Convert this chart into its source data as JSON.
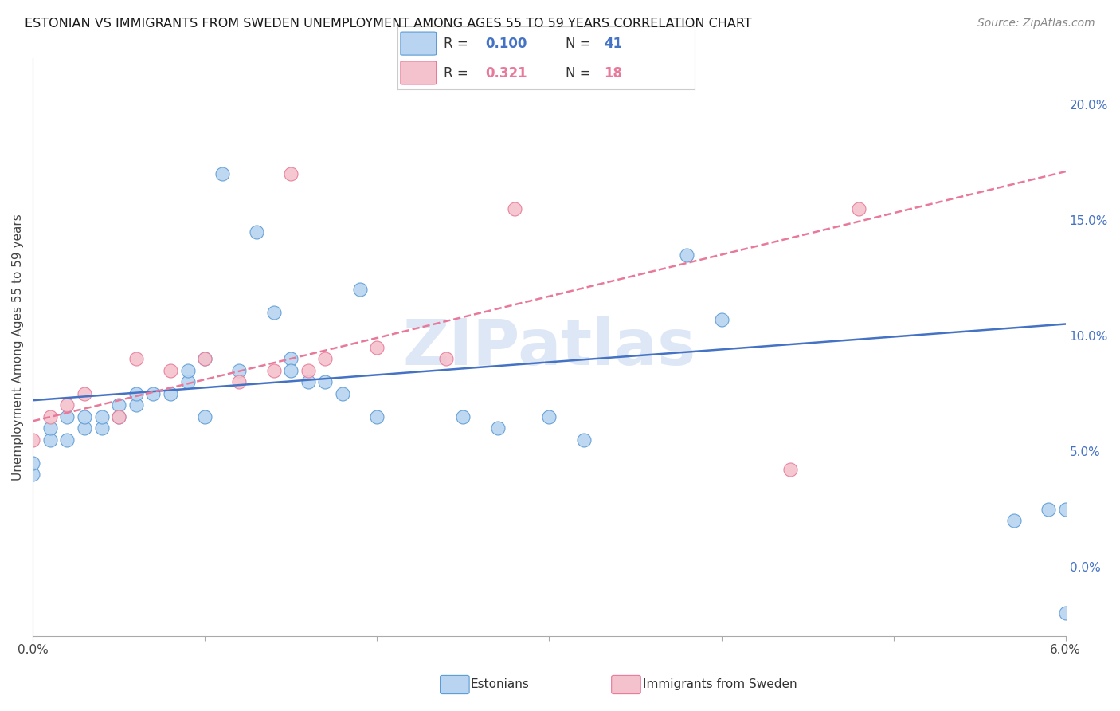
{
  "title": "ESTONIAN VS IMMIGRANTS FROM SWEDEN UNEMPLOYMENT AMONG AGES 55 TO 59 YEARS CORRELATION CHART",
  "source": "Source: ZipAtlas.com",
  "ylabel": "Unemployment Among Ages 55 to 59 years",
  "xlim": [
    0.0,
    0.06
  ],
  "ylim": [
    -0.03,
    0.22
  ],
  "xticks": [
    0.0,
    0.01,
    0.02,
    0.03,
    0.04,
    0.05,
    0.06
  ],
  "xtick_labels": [
    "0.0%",
    "",
    "",
    "",
    "",
    "",
    "6.0%"
  ],
  "yticks_right": [
    0.0,
    0.05,
    0.1,
    0.15,
    0.2
  ],
  "ytick_labels_right": [
    "0.0%",
    "5.0%",
    "10.0%",
    "15.0%",
    "20.0%"
  ],
  "estonians": {
    "color": "#b8d4f0",
    "edge_color": "#5b9bd5",
    "trend_color": "#4472c4",
    "x": [
      0.0,
      0.0,
      0.001,
      0.001,
      0.002,
      0.002,
      0.003,
      0.003,
      0.004,
      0.004,
      0.005,
      0.005,
      0.006,
      0.006,
      0.007,
      0.008,
      0.009,
      0.009,
      0.01,
      0.01,
      0.011,
      0.012,
      0.013,
      0.014,
      0.015,
      0.015,
      0.016,
      0.017,
      0.018,
      0.019,
      0.02,
      0.025,
      0.027,
      0.03,
      0.032,
      0.038,
      0.04,
      0.057,
      0.059,
      0.06,
      0.06
    ],
    "y": [
      0.04,
      0.045,
      0.055,
      0.06,
      0.055,
      0.065,
      0.06,
      0.065,
      0.06,
      0.065,
      0.065,
      0.07,
      0.07,
      0.075,
      0.075,
      0.075,
      0.08,
      0.085,
      0.09,
      0.065,
      0.17,
      0.085,
      0.145,
      0.11,
      0.09,
      0.085,
      0.08,
      0.08,
      0.075,
      0.12,
      0.065,
      0.065,
      0.06,
      0.065,
      0.055,
      0.135,
      0.107,
      0.02,
      0.025,
      -0.02,
      0.025
    ]
  },
  "immigrants": {
    "color": "#f4c2cc",
    "edge_color": "#e8799a",
    "trend_color": "#e8799a",
    "x": [
      0.0,
      0.001,
      0.002,
      0.003,
      0.005,
      0.006,
      0.008,
      0.01,
      0.012,
      0.014,
      0.015,
      0.016,
      0.017,
      0.02,
      0.024,
      0.028,
      0.044,
      0.048
    ],
    "y": [
      0.055,
      0.065,
      0.07,
      0.075,
      0.065,
      0.09,
      0.085,
      0.09,
      0.08,
      0.085,
      0.17,
      0.085,
      0.09,
      0.095,
      0.09,
      0.155,
      0.042,
      0.155
    ]
  },
  "background_color": "#ffffff",
  "grid_color": "#d9d9d9",
  "watermark": "ZIPatlas",
  "watermark_color": "#c8d8f0",
  "est_R": 0.1,
  "est_N": 41,
  "imm_R": 0.321,
  "imm_N": 18,
  "est_trend_intercept": 0.072,
  "est_trend_slope": 0.55,
  "imm_trend_intercept": 0.063,
  "imm_trend_slope": 1.8
}
